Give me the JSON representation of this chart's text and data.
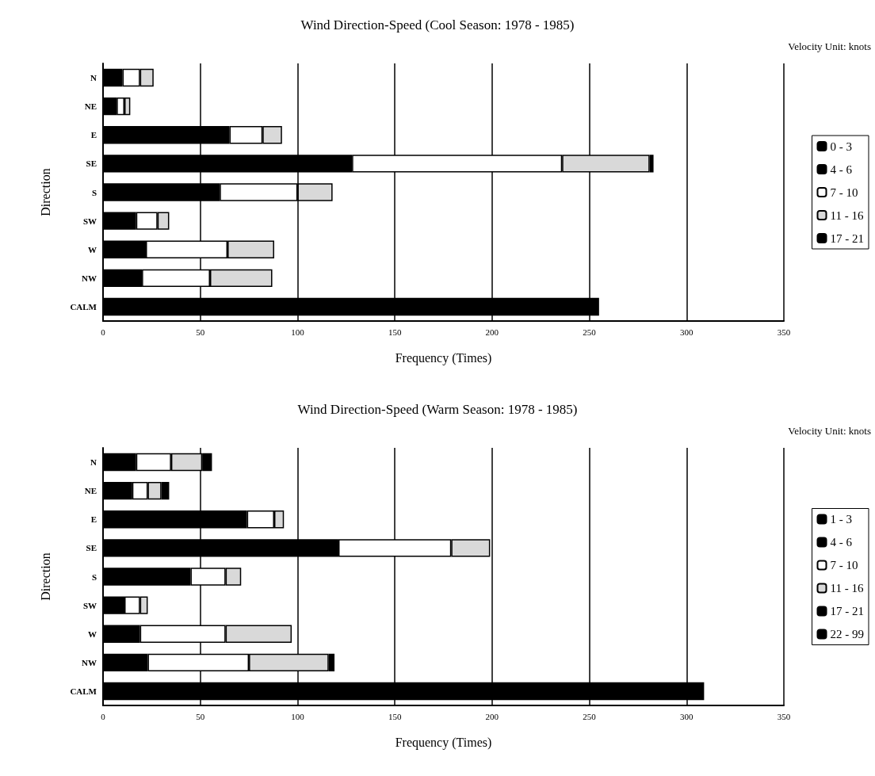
{
  "chart_data": [
    {
      "type": "bar",
      "orientation": "horizontal",
      "stacked": true,
      "title": "Wind Direction-Speed (Cool Season: 1978 - 1985)",
      "xlabel": "Frequency (Times)",
      "ylabel": "Direction",
      "annotations": [
        "Velocity Unit: knots"
      ],
      "categories": [
        "N",
        "NE",
        "E",
        "SE",
        "S",
        "SW",
        "W",
        "NW",
        "CALM"
      ],
      "xlim": [
        0,
        350
      ],
      "xticks": [
        0,
        50,
        100,
        150,
        200,
        250,
        300,
        350
      ],
      "grid": "x",
      "legend": "right",
      "series": [
        {
          "name": "0 - 3",
          "color": "#000000",
          "values": [
            null,
            null,
            null,
            null,
            null,
            null,
            null,
            null,
            255
          ]
        },
        {
          "name": "4 - 6",
          "color": "#000000",
          "values": [
            10,
            7,
            65,
            128,
            60,
            17,
            22,
            20,
            null
          ]
        },
        {
          "name": "7 - 10",
          "color": "#ffffff",
          "values": [
            9,
            4,
            17,
            108,
            40,
            11,
            42,
            35,
            null
          ]
        },
        {
          "name": "11 - 16",
          "color": "#d9d9d9",
          "values": [
            7,
            3,
            10,
            45,
            18,
            6,
            24,
            32,
            null
          ]
        },
        {
          "name": "17 - 21",
          "color": "#000000",
          "values": [
            null,
            null,
            null,
            2,
            null,
            null,
            null,
            null,
            null
          ]
        }
      ]
    },
    {
      "type": "bar",
      "orientation": "horizontal",
      "stacked": true,
      "title": "Wind Direction-Speed (Warm Season: 1978 - 1985)",
      "xlabel": "Frequency (Times)",
      "ylabel": "Direction",
      "annotations": [
        "Velocity Unit: knots"
      ],
      "categories": [
        "N",
        "NE",
        "E",
        "SE",
        "S",
        "SW",
        "W",
        "NW",
        "CALM"
      ],
      "xlim": [
        0,
        350
      ],
      "xticks": [
        0,
        50,
        100,
        150,
        200,
        250,
        300,
        350
      ],
      "grid": "x",
      "legend": "right",
      "series": [
        {
          "name": "1 - 3",
          "color": "#000000",
          "values": [
            null,
            null,
            null,
            null,
            null,
            null,
            null,
            null,
            309
          ]
        },
        {
          "name": "4 - 6",
          "color": "#000000",
          "values": [
            17,
            15,
            74,
            121,
            45,
            11,
            19,
            23,
            null
          ]
        },
        {
          "name": "7 - 10",
          "color": "#ffffff",
          "values": [
            18,
            8,
            14,
            58,
            18,
            8,
            44,
            52,
            null
          ]
        },
        {
          "name": "11 - 16",
          "color": "#d9d9d9",
          "values": [
            16,
            7,
            5,
            20,
            8,
            4,
            34,
            41,
            null
          ]
        },
        {
          "name": "17 - 21",
          "color": "#000000",
          "values": [
            5,
            4,
            null,
            null,
            null,
            null,
            null,
            3,
            null
          ]
        },
        {
          "name": "22 - 99",
          "color": "#000000",
          "values": [
            null,
            null,
            null,
            null,
            null,
            null,
            null,
            null,
            null
          ]
        }
      ]
    }
  ]
}
